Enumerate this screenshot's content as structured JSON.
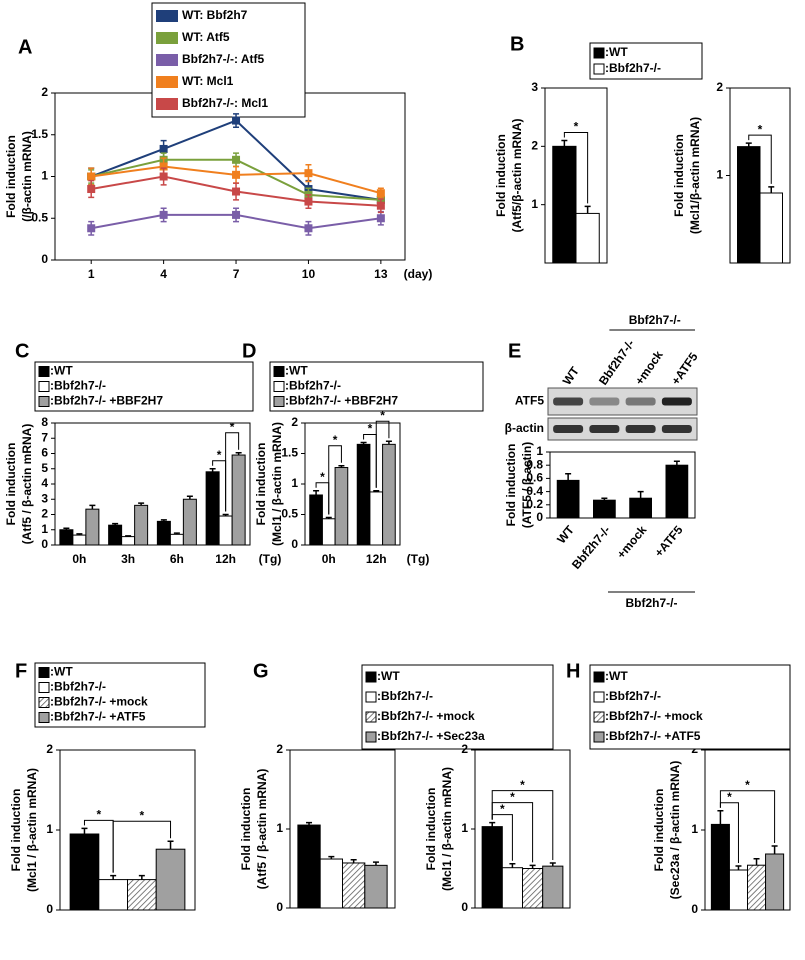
{
  "chart_data": [
    {
      "type": "line",
      "label": "A",
      "ylabel": [
        "Fold induction",
        "(/β-actin mRNA)"
      ],
      "xlabel": "(day)",
      "x": [
        1,
        4,
        7,
        10,
        13
      ],
      "xlim": [
        -0.5,
        14
      ],
      "xticks": [
        1,
        4,
        7,
        10,
        13
      ],
      "ylim": [
        0,
        2
      ],
      "yticks": [
        0,
        0.5,
        1,
        1.5,
        2
      ],
      "series": [
        {
          "name": "WT: Bbf2h7",
          "color": "#1f3f7a",
          "values": [
            1.0,
            1.33,
            1.67,
            0.85,
            0.72
          ],
          "errors": [
            0.1,
            0.1,
            0.08,
            0.1,
            0.08
          ]
        },
        {
          "name": "WT: Atf5",
          "color": "#7aa03c",
          "values": [
            1.0,
            1.2,
            1.2,
            0.78,
            0.72
          ],
          "errors": [
            0.08,
            0.08,
            0.08,
            0.08,
            0.06
          ]
        },
        {
          "name": "Bbf2h7-/-: Atf5",
          "color": "#7a5ea8",
          "values": [
            0.38,
            0.54,
            0.54,
            0.38,
            0.5
          ],
          "errors": [
            0.08,
            0.08,
            0.08,
            0.08,
            0.08
          ]
        },
        {
          "name": "WT: Mcl1",
          "color": "#f07f1e",
          "values": [
            1.0,
            1.12,
            1.02,
            1.04,
            0.8
          ],
          "errors": [
            0.1,
            0.1,
            0.1,
            0.1,
            0.06
          ]
        },
        {
          "name": "Bbf2h7-/-: Mcl1",
          "color": "#c84848",
          "values": [
            0.85,
            1.0,
            0.82,
            0.7,
            0.65
          ],
          "errors": [
            0.1,
            0.1,
            0.1,
            0.08,
            0.08
          ]
        }
      ]
    },
    {
      "type": "bar",
      "label": "B",
      "ylabel": [
        "Fold induction",
        "(Atf5/β-actin mRNA)"
      ],
      "ylim": [
        0,
        3
      ],
      "yticks": [
        1,
        2,
        3
      ],
      "series": [
        {
          "name": ":WT",
          "color": "#000000",
          "values": [
            2.0
          ],
          "errors": [
            0.1
          ]
        },
        {
          "name": ":Bbf2h7-/-",
          "color": "#ffffff",
          "values": [
            0.85
          ],
          "errors": [
            0.12
          ]
        }
      ],
      "significance": [
        {
          "pair": [
            0,
            1
          ],
          "label": "*"
        }
      ]
    },
    {
      "type": "bar",
      "ylabel": [
        "Fold induction",
        "(Mcl1/β-actin mRNA)"
      ],
      "ylim": [
        0,
        2
      ],
      "yticks": [
        1,
        2
      ],
      "series": [
        {
          "color": "#000000",
          "values": [
            1.33
          ],
          "errors": [
            0.04
          ]
        },
        {
          "color": "#ffffff",
          "values": [
            0.8
          ],
          "errors": [
            0.07
          ]
        }
      ],
      "significance": [
        {
          "pair": [
            0,
            1
          ],
          "label": "*"
        }
      ]
    },
    {
      "type": "bar",
      "label": "C",
      "ylabel": [
        "Fold induction",
        "(Atf5 / β-actin mRNA)"
      ],
      "xlabel": "(Tg)",
      "categories": [
        "0h",
        "3h",
        "6h",
        "12h"
      ],
      "ylim": [
        0,
        8
      ],
      "yticks": [
        0,
        1,
        2,
        3,
        4,
        5,
        6,
        7,
        8
      ],
      "series": [
        {
          "name": ":WT",
          "color": "#000000",
          "values": [
            1.0,
            1.3,
            1.55,
            4.8
          ],
          "errors": [
            0.1,
            0.1,
            0.1,
            0.2
          ]
        },
        {
          "name": ":Bbf2h7-/-",
          "color": "#ffffff",
          "values": [
            0.65,
            0.55,
            0.7,
            1.9
          ],
          "errors": [
            0.08,
            0.05,
            0.08,
            0.1
          ]
        },
        {
          "name": ":Bbf2h7-/- +BBF2H7",
          "color": "#a0a0a0",
          "values": [
            2.35,
            2.6,
            3.0,
            5.9
          ],
          "errors": [
            0.25,
            0.15,
            0.2,
            0.15
          ]
        }
      ],
      "significance": [
        {
          "category": 3,
          "pair": [
            0,
            1
          ],
          "label": "*"
        },
        {
          "category": 3,
          "pair": [
            1,
            2
          ],
          "label": "*"
        }
      ]
    },
    {
      "type": "bar",
      "label": "D",
      "ylabel": [
        "Fold induction",
        "(Mcl1 / β-actin mRNA)"
      ],
      "xlabel": "(Tg)",
      "categories": [
        "0h",
        "12h"
      ],
      "ylim": [
        0,
        2
      ],
      "yticks": [
        0,
        0.5,
        1,
        1.5,
        2
      ],
      "series": [
        {
          "name": ":WT",
          "color": "#000000",
          "values": [
            0.82,
            1.65
          ],
          "errors": [
            0.07,
            0.03
          ]
        },
        {
          "name": ":Bbf2h7-/-",
          "color": "#ffffff",
          "values": [
            0.43,
            0.87
          ],
          "errors": [
            0.02,
            0.02
          ]
        },
        {
          "name": ":Bbf2h7-/- +BBF2H7",
          "color": "#a0a0a0",
          "values": [
            1.27,
            1.65
          ],
          "errors": [
            0.03,
            0.05
          ]
        }
      ],
      "significance": [
        {
          "category": 0,
          "pair": [
            0,
            1
          ],
          "label": "*"
        },
        {
          "category": 0,
          "pair": [
            1,
            2
          ],
          "label": "*"
        },
        {
          "category": 1,
          "pair": [
            0,
            1
          ],
          "label": "*"
        },
        {
          "category": 1,
          "pair": [
            1,
            2
          ],
          "label": "*"
        }
      ]
    },
    {
      "type": "bar",
      "label": "E",
      "ylabel": [
        "Fold induction",
        "(ATF5 / β-actin)"
      ],
      "blot": {
        "rows": [
          "ATF5",
          "β-actin"
        ],
        "lanes": [
          "WT",
          "Bbf2h7-/-",
          "+mock",
          "+ATF5"
        ],
        "lane_group": "Bbf2h7-/-"
      },
      "categories": [
        "WT",
        "Bbf2h7-/-",
        "+mock",
        "+ATF5"
      ],
      "category_group": "Bbf2h7-/-",
      "ylim": [
        0,
        1
      ],
      "yticks": [
        0,
        0.2,
        0.4,
        0.6,
        0.8,
        1
      ],
      "series": [
        {
          "color": "#000000",
          "values": [
            0.57,
            0.27,
            0.3,
            0.8
          ],
          "errors": [
            0.1,
            0.03,
            0.1,
            0.06
          ]
        }
      ]
    },
    {
      "type": "bar",
      "label": "F",
      "ylabel": [
        "Fold induction",
        "(Mcl1 / β-actin mRNA)"
      ],
      "ylim": [
        0,
        2
      ],
      "yticks": [
        0,
        1,
        2
      ],
      "series": [
        {
          "name": ":WT",
          "color": "#000000",
          "values": [
            0.95
          ],
          "errors": [
            0.07
          ]
        },
        {
          "name": ":Bbf2h7-/-",
          "color": "#ffffff",
          "values": [
            0.38
          ],
          "errors": [
            0.05
          ]
        },
        {
          "name": ":Bbf2h7-/- +mock",
          "color": "#ffffff",
          "pattern": "hatch",
          "values": [
            0.38
          ],
          "errors": [
            0.05
          ]
        },
        {
          "name": ":Bbf2h7-/- +ATF5",
          "color": "#a0a0a0",
          "values": [
            0.76
          ],
          "errors": [
            0.1
          ]
        }
      ],
      "significance": [
        {
          "pair": [
            0,
            1
          ],
          "label": "*"
        },
        {
          "pair": [
            1,
            3
          ],
          "label": "*"
        }
      ]
    },
    {
      "type": "bar",
      "label": "G",
      "ylabel": [
        "Fold induction",
        "(Atf5 / β-actin mRNA)"
      ],
      "ylim": [
        0,
        2
      ],
      "yticks": [
        0,
        1,
        2
      ],
      "series": [
        {
          "name": ":WT",
          "color": "#000000",
          "values": [
            1.05
          ],
          "errors": [
            0.03
          ]
        },
        {
          "name": ":Bbf2h7-/-",
          "color": "#ffffff",
          "values": [
            0.62
          ],
          "errors": [
            0.03
          ]
        },
        {
          "name": ":Bbf2h7-/- +mock",
          "color": "#ffffff",
          "pattern": "hatch",
          "values": [
            0.57
          ],
          "errors": [
            0.04
          ]
        },
        {
          "name": ":Bbf2h7-/- +Sec23a",
          "color": "#a0a0a0",
          "values": [
            0.54
          ],
          "errors": [
            0.04
          ]
        }
      ]
    },
    {
      "type": "bar",
      "ylabel": [
        "Fold induction",
        "(Mcl1 / β-actin mRNA)"
      ],
      "ylim": [
        0,
        2
      ],
      "yticks": [
        0,
        1,
        2
      ],
      "series": [
        {
          "color": "#000000",
          "values": [
            1.03
          ],
          "errors": [
            0.05
          ]
        },
        {
          "color": "#ffffff",
          "values": [
            0.51
          ],
          "errors": [
            0.05
          ]
        },
        {
          "color": "#ffffff",
          "pattern": "hatch",
          "values": [
            0.5
          ],
          "errors": [
            0.04
          ]
        },
        {
          "color": "#a0a0a0",
          "values": [
            0.53
          ],
          "errors": [
            0.04
          ]
        }
      ],
      "significance": [
        {
          "pair": [
            0,
            1
          ],
          "label": "*"
        },
        {
          "pair": [
            0,
            2
          ],
          "label": "*"
        },
        {
          "pair": [
            0,
            3
          ],
          "label": "*"
        }
      ]
    },
    {
      "type": "bar",
      "label": "H",
      "ylabel": [
        "Fold induction",
        "(Sec23a / β-actin mRNA)"
      ],
      "ylim": [
        0,
        2
      ],
      "yticks": [
        0,
        1,
        2
      ],
      "series": [
        {
          "name": ":WT",
          "color": "#000000",
          "values": [
            1.07
          ],
          "errors": [
            0.17
          ]
        },
        {
          "name": ":Bbf2h7-/-",
          "color": "#ffffff",
          "values": [
            0.5
          ],
          "errors": [
            0.05
          ]
        },
        {
          "name": ":Bbf2h7-/- +mock",
          "color": "#ffffff",
          "pattern": "hatch",
          "values": [
            0.56
          ],
          "errors": [
            0.08
          ]
        },
        {
          "name": ":Bbf2h7-/- +ATF5",
          "color": "#a0a0a0",
          "values": [
            0.7
          ],
          "errors": [
            0.1
          ]
        }
      ],
      "significance": [
        {
          "pair": [
            0,
            1
          ],
          "label": "*"
        },
        {
          "pair": [
            0,
            3
          ],
          "label": "*"
        }
      ]
    }
  ]
}
